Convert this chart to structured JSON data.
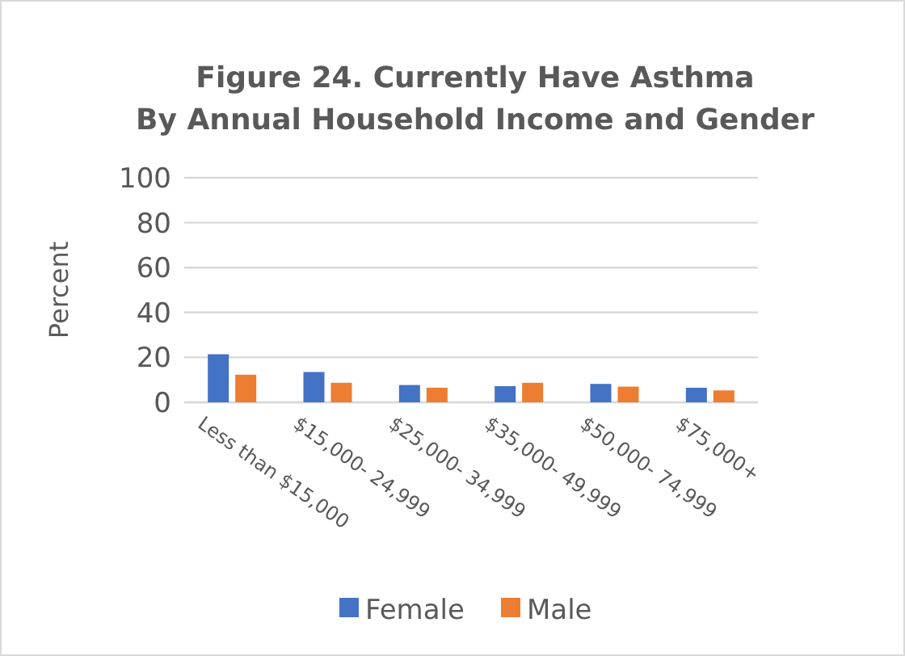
{
  "chart_data": {
    "type": "bar",
    "title": "Figure 24. Currently Have Asthma",
    "subtitle": "By Annual Household Income and Gender",
    "ylabel": "Percent",
    "categories": [
      "Less than $15,000",
      "$15,000- 24,999",
      "$25,000- 34,999",
      "$35,000- 49,999",
      "$50,000- 74,999",
      "$75,000+"
    ],
    "series": [
      {
        "name": "Female",
        "color": "#4472c4",
        "values": [
          21.4,
          13.5,
          7.7,
          7.2,
          8.2,
          6.5
        ]
      },
      {
        "name": "Male",
        "color": "#ed7d31",
        "values": [
          12.3,
          8.7,
          6.5,
          8.7,
          7.0,
          5.3
        ]
      }
    ],
    "ylim": [
      0,
      100
    ],
    "yticks": [
      0,
      20,
      40,
      60,
      80,
      100
    ],
    "grid": "y",
    "legend": "bottom"
  }
}
